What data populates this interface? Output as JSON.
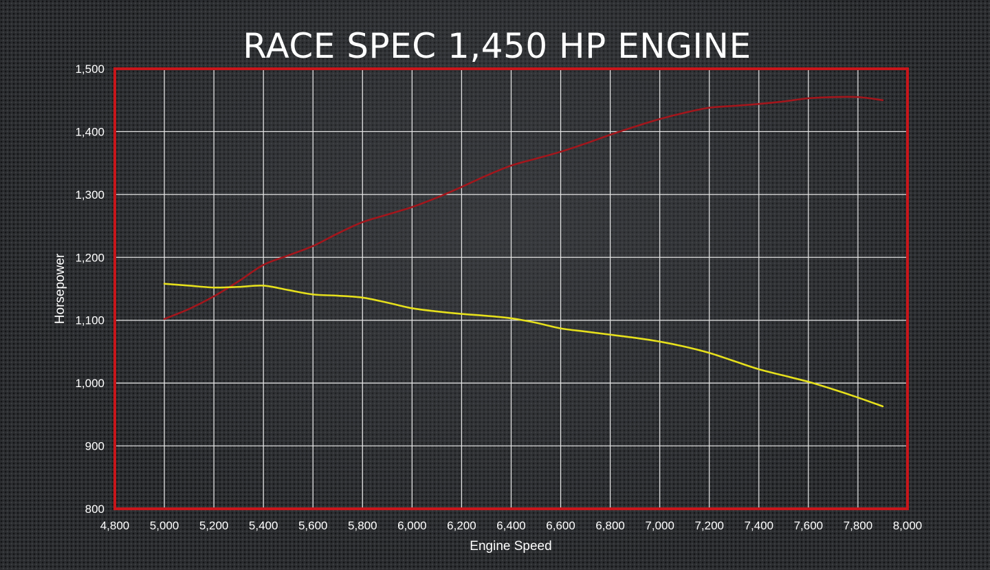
{
  "chart_data": {
    "type": "line",
    "title": "RACE SPEC 1,450 HP ENGINE",
    "xlabel": "Engine Speed",
    "ylabel": "Horsepower",
    "xlim": [
      4800,
      8000
    ],
    "ylim": [
      800,
      1500
    ],
    "x_ticks": [
      "4,800",
      "5,000",
      "5,200",
      "5,400",
      "5,600",
      "5,800",
      "6,000",
      "6,200",
      "6,400",
      "6,600",
      "6,800",
      "7,000",
      "7,200",
      "7,400",
      "7,600",
      "7,800",
      "8,000"
    ],
    "y_ticks": [
      "800",
      "900",
      "1,000",
      "1,100",
      "1,200",
      "1,300",
      "1,400",
      "1,500"
    ],
    "grid": true,
    "legend": "none",
    "series": [
      {
        "color": "#a3161c",
        "x": [
          5000,
          5100,
          5200,
          5300,
          5400,
          5500,
          5600,
          5700,
          5800,
          5900,
          6000,
          6100,
          6200,
          6300,
          6400,
          6500,
          6600,
          6700,
          6800,
          6900,
          7000,
          7100,
          7200,
          7300,
          7400,
          7500,
          7600,
          7700,
          7800,
          7900
        ],
        "values": [
          1102,
          1118,
          1138,
          1162,
          1188,
          1203,
          1218,
          1238,
          1256,
          1268,
          1280,
          1295,
          1312,
          1330,
          1346,
          1357,
          1368,
          1381,
          1395,
          1408,
          1420,
          1430,
          1438,
          1441,
          1444,
          1448,
          1453,
          1455,
          1455,
          1450
        ]
      },
      {
        "color": "#e6e01c",
        "x": [
          5000,
          5100,
          5200,
          5300,
          5400,
          5500,
          5600,
          5700,
          5800,
          5900,
          6000,
          6100,
          6200,
          6300,
          6400,
          6500,
          6600,
          6700,
          6800,
          6900,
          7000,
          7100,
          7200,
          7300,
          7400,
          7500,
          7600,
          7700,
          7800,
          7900
        ],
        "values": [
          1158,
          1155,
          1152,
          1153,
          1155,
          1148,
          1141,
          1139,
          1136,
          1128,
          1119,
          1114,
          1110,
          1107,
          1103,
          1096,
          1087,
          1082,
          1077,
          1072,
          1066,
          1058,
          1048,
          1035,
          1022,
          1012,
          1002,
          990,
          977,
          963
        ]
      }
    ]
  },
  "colors": {
    "frame": "#c8161b",
    "grid": "#e8e8e8",
    "text": "#ffffff"
  }
}
